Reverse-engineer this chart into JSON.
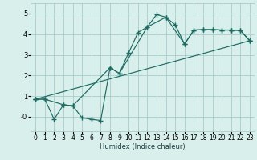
{
  "xlabel": "Humidex (Indice chaleur)",
  "background_color": "#d8efec",
  "grid_color": "#a8ccca",
  "line_color": "#1e6b62",
  "xlim": [
    -0.5,
    23.5
  ],
  "ylim": [
    -0.7,
    5.5
  ],
  "xticks": [
    0,
    1,
    2,
    3,
    4,
    5,
    6,
    7,
    8,
    9,
    10,
    11,
    12,
    13,
    14,
    15,
    16,
    17,
    18,
    19,
    20,
    21,
    22,
    23
  ],
  "yticks": [
    0,
    1,
    2,
    3,
    4,
    5
  ],
  "ytick_labels": [
    "-0",
    "1",
    "2",
    "3",
    "4",
    "5"
  ],
  "series": [
    {
      "x": [
        0,
        1,
        2,
        3,
        4,
        5,
        6,
        7,
        8,
        9,
        10,
        11,
        12,
        13,
        14,
        15,
        16,
        17,
        18,
        19,
        20,
        21,
        22,
        23
      ],
      "y": [
        0.85,
        0.85,
        -0.12,
        0.58,
        0.53,
        -0.05,
        -0.12,
        -0.18,
        2.38,
        2.1,
        3.1,
        4.08,
        4.35,
        4.95,
        4.82,
        4.45,
        3.52,
        4.2,
        4.22,
        4.22,
        4.2,
        4.2,
        4.18,
        3.68
      ]
    },
    {
      "x": [
        0,
        1,
        3,
        4,
        8,
        9,
        12,
        14,
        16,
        17,
        18,
        19,
        20,
        21,
        22,
        23
      ],
      "y": [
        0.85,
        0.85,
        0.58,
        0.53,
        2.38,
        2.1,
        4.35,
        4.82,
        3.52,
        4.2,
        4.22,
        4.22,
        4.2,
        4.2,
        4.18,
        3.68
      ]
    },
    {
      "x": [
        0,
        23
      ],
      "y": [
        0.85,
        3.68
      ]
    }
  ]
}
